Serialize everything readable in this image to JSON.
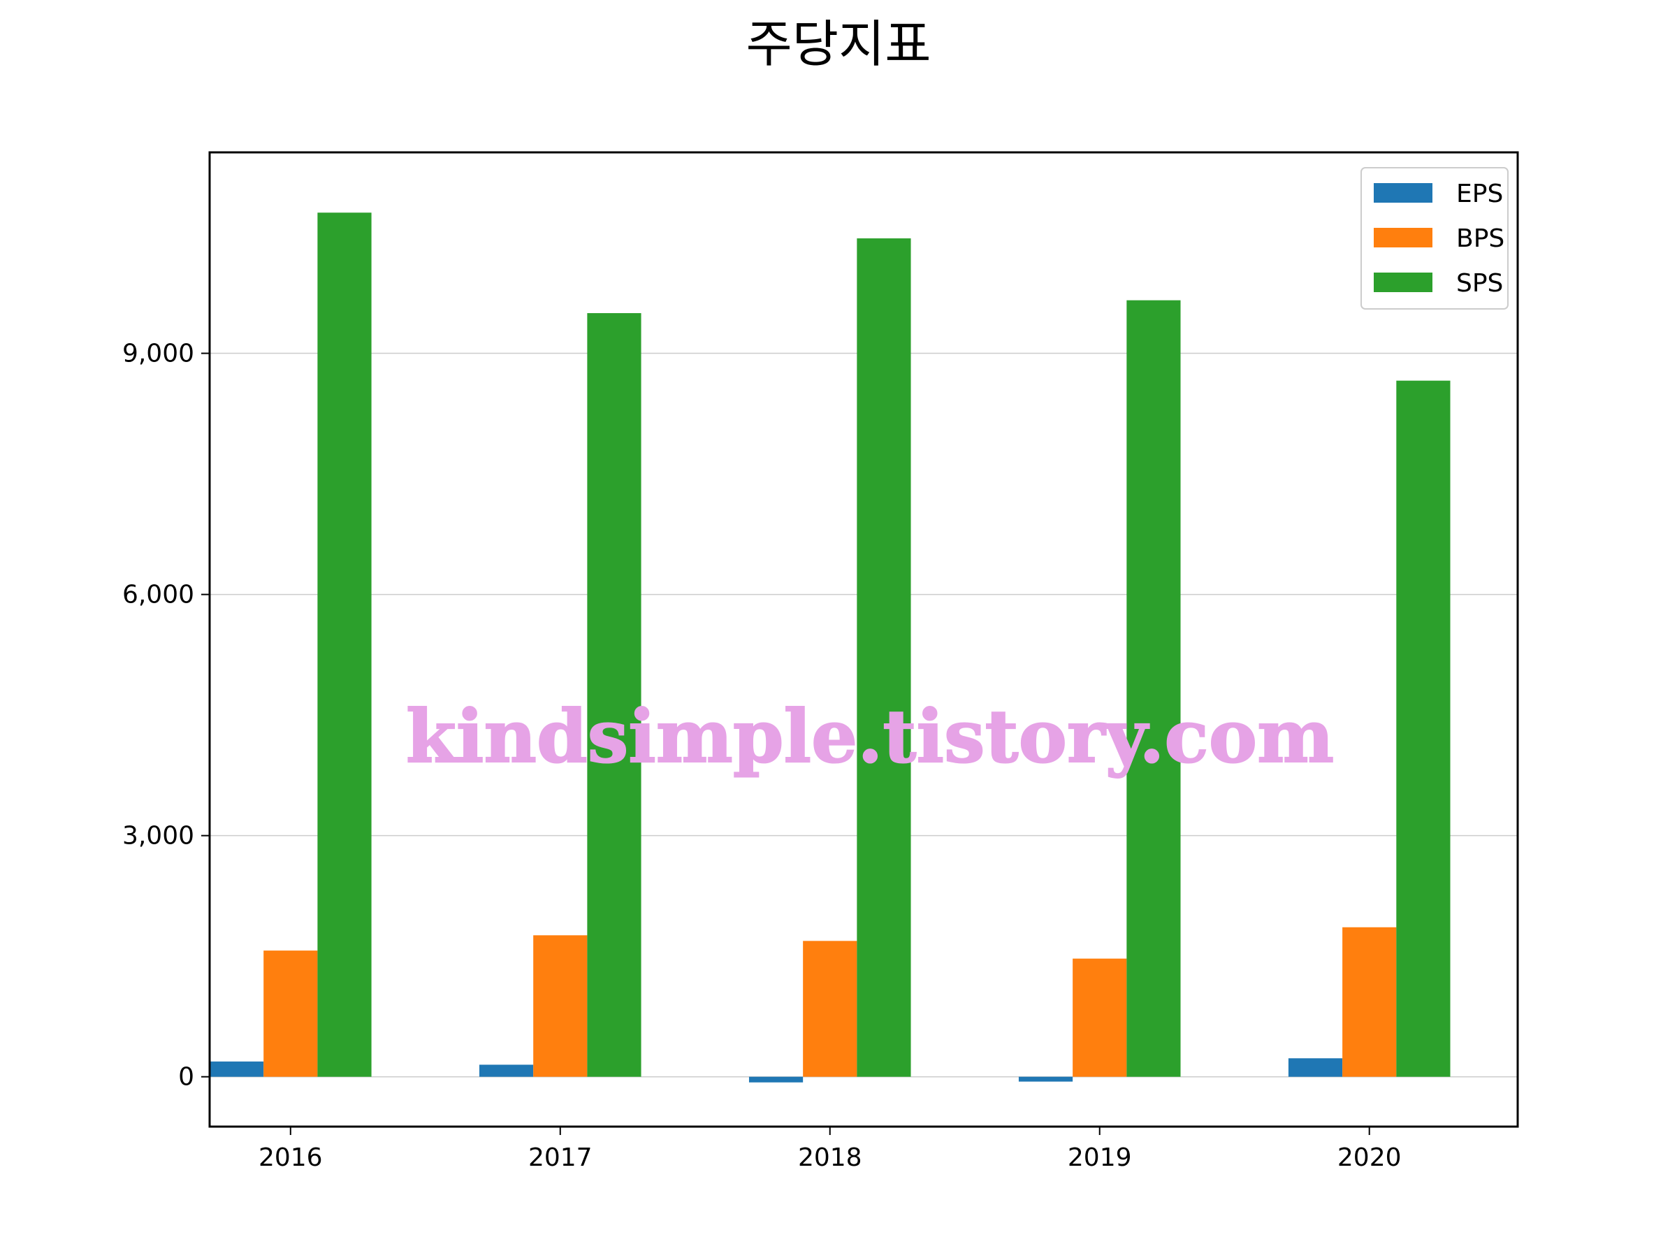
{
  "chart_data": {
    "type": "bar",
    "title": "주당지표",
    "xlabel": "",
    "ylabel": "",
    "categories": [
      "2016",
      "2017",
      "2018",
      "2019",
      "2020"
    ],
    "series": [
      {
        "name": "EPS",
        "color": "#1f77b4",
        "values": [
          190,
          150,
          -70,
          -60,
          230
        ]
      },
      {
        "name": "BPS",
        "color": "#ff7f0e",
        "values": [
          1570,
          1760,
          1690,
          1470,
          1860
        ]
      },
      {
        "name": "SPS",
        "color": "#2ca02c",
        "values": [
          10750,
          9500,
          10430,
          9660,
          8660
        ]
      }
    ],
    "ylim": [
      -620,
      11500
    ],
    "yticks": [
      0,
      3000,
      6000,
      9000
    ],
    "ytick_labels": [
      "0",
      "3,000",
      "6,000",
      "9,000"
    ],
    "grid": "horizontal",
    "legend_position": "top-right",
    "watermark": "kindsimple.tistory.com"
  }
}
